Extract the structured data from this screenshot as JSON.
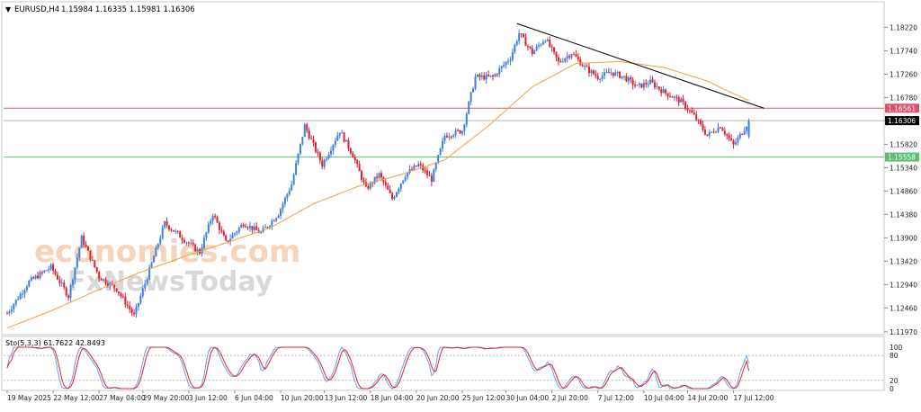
{
  "header": {
    "symbol_label": "EURUSD,H4",
    "ohlc_text": "1.15984 1.16335 1.15981 1.16306",
    "dropdown_glyph": "▼"
  },
  "indicator": {
    "label": "Sto(5,3,3) 61.7622 42.8493"
  },
  "watermark": {
    "line1": "economies.com",
    "line2": "FxNewsToday"
  },
  "colors": {
    "bull": "#3d7fe0",
    "bear": "#e0202f",
    "ma": "#f0a040",
    "trendline": "#000000",
    "resistance": "#e0506a",
    "support": "#5bbf6f",
    "current_price": "#b8b8b8",
    "stoch_main": "#6a9fea",
    "stoch_signal": "#e0202f"
  },
  "chart_data": [
    {
      "type": "candlestick",
      "symbol": "EURUSD",
      "timeframe": "H4",
      "ylim": [
        1.1195,
        1.1845
      ],
      "yticks": [
        1.1822,
        1.1774,
        1.1726,
        1.1678,
        1.163,
        1.1582,
        1.1534,
        1.1486,
        1.1438,
        1.139,
        1.1342,
        1.1294,
        1.1246,
        1.1197
      ],
      "xticks": [
        "19 May 2025",
        "22 May 12:00",
        "27 May 04:00",
        "29 May 20:00",
        "3 Jun 12:00",
        "6 Jun 04:00",
        "10 Jun 20:00",
        "13 Jun 12:00",
        "18 Jun 04:00",
        "20 Jun 20:00",
        "25 Jun 12:00",
        "30 Jun 04:00",
        "2 Jul 20:00",
        "7 Jul 12:00",
        "10 Jul 04:00",
        "14 Jul 20:00",
        "17 Jul 12:00"
      ],
      "last_price": 1.16306,
      "last_ohlc": {
        "open": 1.15984,
        "high": 1.16335,
        "low": 1.15981,
        "close": 1.16306
      },
      "levels": [
        {
          "price": 1.16561,
          "label": "1.16561",
          "role": "resistance"
        },
        {
          "price": 1.16306,
          "label": "1.16306",
          "role": "current"
        },
        {
          "price": 1.15558,
          "label": "1.15558",
          "role": "support"
        }
      ],
      "trendline": {
        "from": {
          "bar": 233,
          "price": 1.183
        },
        "to": {
          "bar": 346,
          "price": 1.1656
        }
      },
      "moving_average_anchors": [
        [
          0,
          1.1205
        ],
        [
          20,
          1.124
        ],
        [
          40,
          1.128
        ],
        [
          60,
          1.1318
        ],
        [
          80,
          1.135
        ],
        [
          100,
          1.138
        ],
        [
          120,
          1.141
        ],
        [
          140,
          1.146
        ],
        [
          160,
          1.1495
        ],
        [
          180,
          1.152
        ],
        [
          200,
          1.155
        ],
        [
          220,
          1.162
        ],
        [
          240,
          1.17
        ],
        [
          260,
          1.1748
        ],
        [
          280,
          1.1752
        ],
        [
          300,
          1.174
        ],
        [
          320,
          1.1712
        ],
        [
          330,
          1.169
        ],
        [
          339,
          1.1672
        ]
      ],
      "close_anchors": [
        [
          0,
          1.1235
        ],
        [
          10,
          1.13
        ],
        [
          20,
          1.133
        ],
        [
          28,
          1.127
        ],
        [
          34,
          1.139
        ],
        [
          42,
          1.131
        ],
        [
          50,
          1.1285
        ],
        [
          58,
          1.123
        ],
        [
          64,
          1.131
        ],
        [
          72,
          1.142
        ],
        [
          80,
          1.139
        ],
        [
          88,
          1.136
        ],
        [
          94,
          1.144
        ],
        [
          100,
          1.138
        ],
        [
          108,
          1.142
        ],
        [
          116,
          1.14
        ],
        [
          124,
          1.144
        ],
        [
          130,
          1.15
        ],
        [
          136,
          1.162
        ],
        [
          144,
          1.154
        ],
        [
          152,
          1.161
        ],
        [
          158,
          1.156
        ],
        [
          164,
          1.149
        ],
        [
          170,
          1.152
        ],
        [
          176,
          1.147
        ],
        [
          182,
          1.152
        ],
        [
          188,
          1.154
        ],
        [
          194,
          1.151
        ],
        [
          200,
          1.16
        ],
        [
          208,
          1.161
        ],
        [
          214,
          1.172
        ],
        [
          222,
          1.172
        ],
        [
          230,
          1.176
        ],
        [
          234,
          1.181
        ],
        [
          240,
          1.177
        ],
        [
          246,
          1.18
        ],
        [
          252,
          1.175
        ],
        [
          258,
          1.177
        ],
        [
          264,
          1.174
        ],
        [
          270,
          1.172
        ],
        [
          276,
          1.173
        ],
        [
          282,
          1.172
        ],
        [
          288,
          1.17
        ],
        [
          294,
          1.171
        ],
        [
          300,
          1.169
        ],
        [
          308,
          1.167
        ],
        [
          314,
          1.164
        ],
        [
          320,
          1.16
        ],
        [
          326,
          1.162
        ],
        [
          332,
          1.158
        ],
        [
          335,
          1.16
        ],
        [
          339,
          1.163
        ]
      ],
      "bar_count": 340
    },
    {
      "type": "line",
      "name": "Stochastic Oscillator",
      "params": "5,3,3",
      "main_value": 61.7622,
      "signal_value": 42.8493,
      "ylim": [
        0,
        100
      ],
      "yticks": [
        100,
        80,
        20,
        0
      ],
      "levels": [
        80,
        20
      ]
    }
  ]
}
